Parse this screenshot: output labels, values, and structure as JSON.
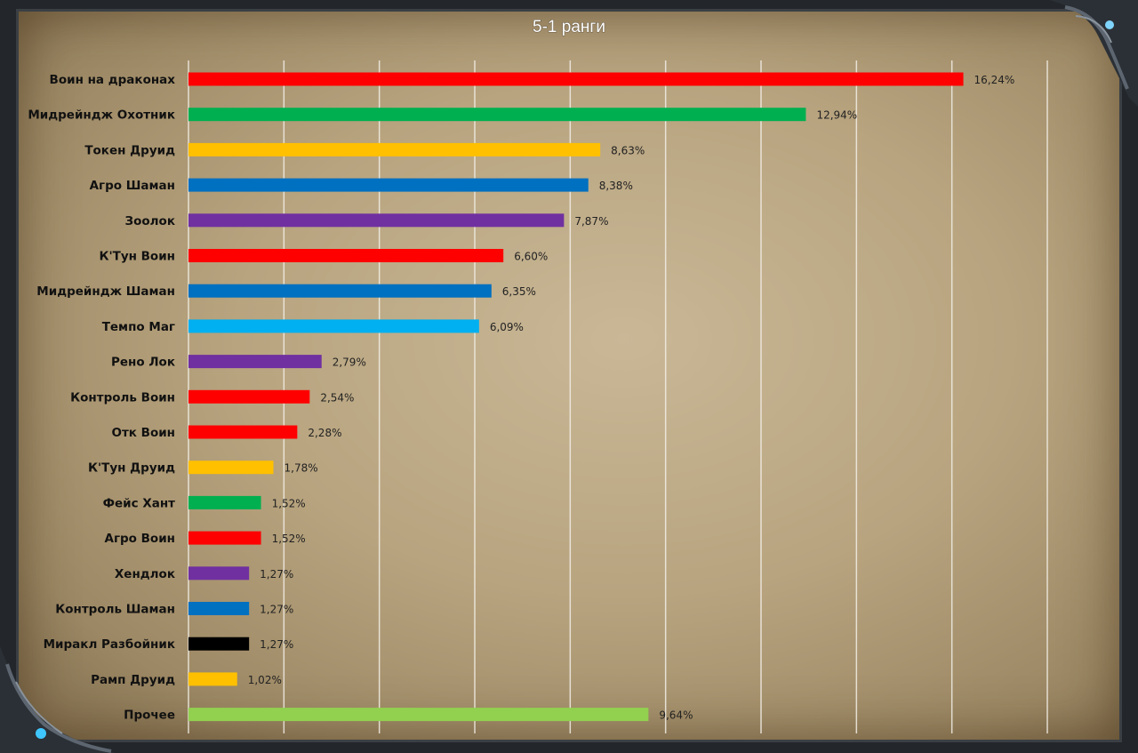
{
  "chart_data": {
    "type": "bar",
    "orientation": "horizontal",
    "title": "5-1 ранги",
    "categories": [
      "Воин на драконах",
      "Мидрейндж Охотник",
      "Токен Друид",
      "Агро Шаман",
      "Зоолок",
      "К'Тун Воин",
      "Мидрейндж Шаман",
      "Темпо Маг",
      "Рено Лок",
      "Контроль Воин",
      "Отк Воин",
      "К'Тун Друид",
      "Фейс Хант",
      "Агро Воин",
      "Хендлок",
      "Контроль Шаман",
      "Миракл Разбойник",
      "Рамп Друид",
      "Прочее"
    ],
    "values": [
      16.24,
      12.94,
      8.63,
      8.38,
      7.87,
      6.6,
      6.35,
      6.09,
      2.79,
      2.54,
      2.28,
      1.78,
      1.52,
      1.52,
      1.27,
      1.27,
      1.27,
      1.02,
      9.64
    ],
    "value_labels": [
      "16,24%",
      "12,94%",
      "8,63%",
      "8,38%",
      "7,87%",
      "6,60%",
      "6,35%",
      "6,09%",
      "2,79%",
      "2,54%",
      "2,28%",
      "1,78%",
      "1,52%",
      "1,52%",
      "1,27%",
      "1,27%",
      "1,27%",
      "1,02%",
      "9,64%"
    ],
    "colors": [
      "#ff0000",
      "#00b050",
      "#ffc000",
      "#0070c0",
      "#7030a0",
      "#ff0000",
      "#0070c0",
      "#00b0f0",
      "#7030a0",
      "#ff0000",
      "#ff0000",
      "#ffc000",
      "#00b050",
      "#ff0000",
      "#7030a0",
      "#0070c0",
      "#000000",
      "#ffc000",
      "#92d050"
    ],
    "xlim": [
      0,
      18
    ],
    "grid": true,
    "legend": "none"
  }
}
